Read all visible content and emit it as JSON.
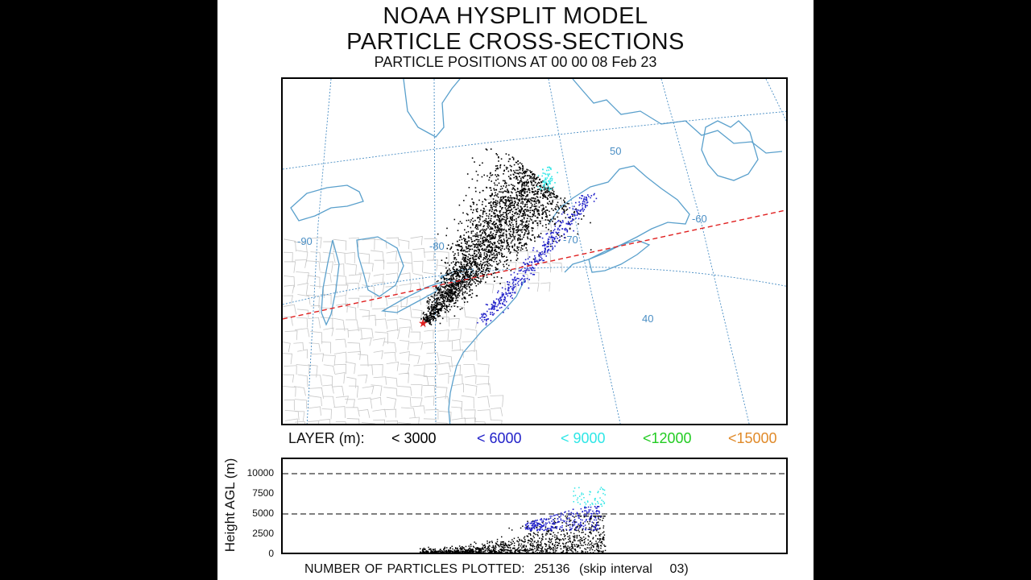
{
  "title": {
    "line1": "NOAA HYSPLIT MODEL",
    "line2": "PARTICLE CROSS-SECTIONS",
    "line3": "PARTICLE POSITIONS AT 00 00  08 Feb 23"
  },
  "map": {
    "longitude_labels": [
      "-90",
      "-80",
      "-70",
      "-60"
    ],
    "latitude_labels": [
      "50",
      "40"
    ],
    "source_marker": "star"
  },
  "legend": {
    "label": "LAYER (m):",
    "layers": [
      {
        "text": "< 3000",
        "color": "#000000"
      },
      {
        "text": "< 6000",
        "color": "#1f1fc8"
      },
      {
        "text": "< 9000",
        "color": "#2ee6e6"
      },
      {
        "text": "<12000",
        "color": "#22cc22"
      },
      {
        "text": "<15000",
        "color": "#e08a2a"
      }
    ]
  },
  "cross_section": {
    "ylabel": "Height AGL (m)",
    "yticks": [
      "10000",
      "7500",
      "5000",
      "2500",
      "0"
    ],
    "dashed_levels": [
      10000,
      5000
    ]
  },
  "footer": {
    "label": "NUMBER OF PARTICLES PLOTTED:",
    "count": "25136",
    "skip": "(skip interval    03)"
  },
  "colors": {
    "grid": "#4a8ec4",
    "coast": "#5aa0cc",
    "states": "#c0c0c0",
    "section_line": "#e02020"
  }
}
